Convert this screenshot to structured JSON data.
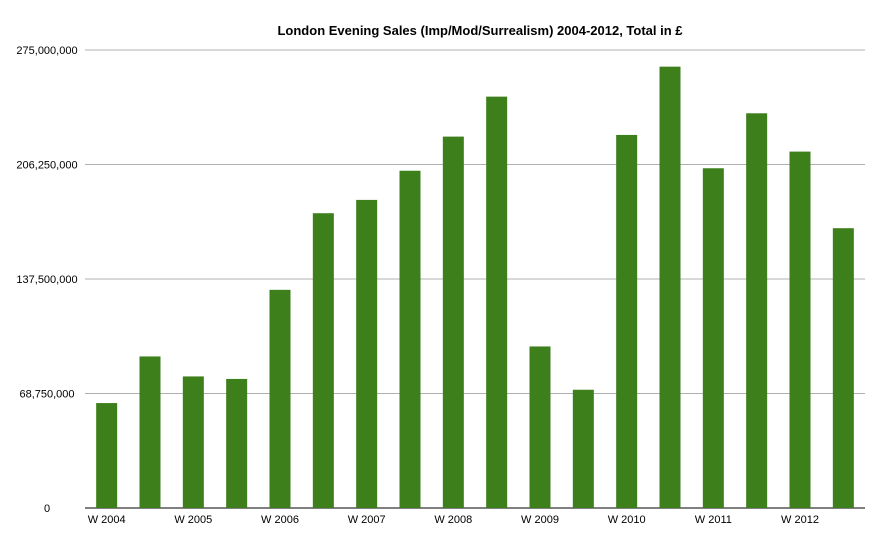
{
  "chart_data": {
    "type": "bar",
    "title": "London Evening Sales (Imp/Mod/Surrealism) 2004-2012, Total in £",
    "xlabel": "",
    "ylabel": "",
    "ylim": [
      0,
      275000000
    ],
    "y_ticks": [
      "0",
      "68,750,000",
      "137,500,000",
      "206,250,000",
      "275,000,000"
    ],
    "grid": true,
    "legend": "none",
    "bar_color": "#3d7f1b",
    "categories": [
      "W 2004",
      "",
      "W 2005",
      "",
      "W 2006",
      "",
      "W 2007",
      "",
      "W 2008",
      "",
      "W 2009",
      "",
      "W 2010",
      "",
      "W 2011",
      "",
      "W 2012",
      ""
    ],
    "values": [
      63000000,
      91000000,
      79000000,
      77500000,
      131000000,
      177000000,
      185000000,
      202500000,
      223000000,
      247000000,
      97000000,
      71000000,
      224000000,
      265000000,
      204000000,
      237000000,
      214000000,
      168000000
    ]
  }
}
